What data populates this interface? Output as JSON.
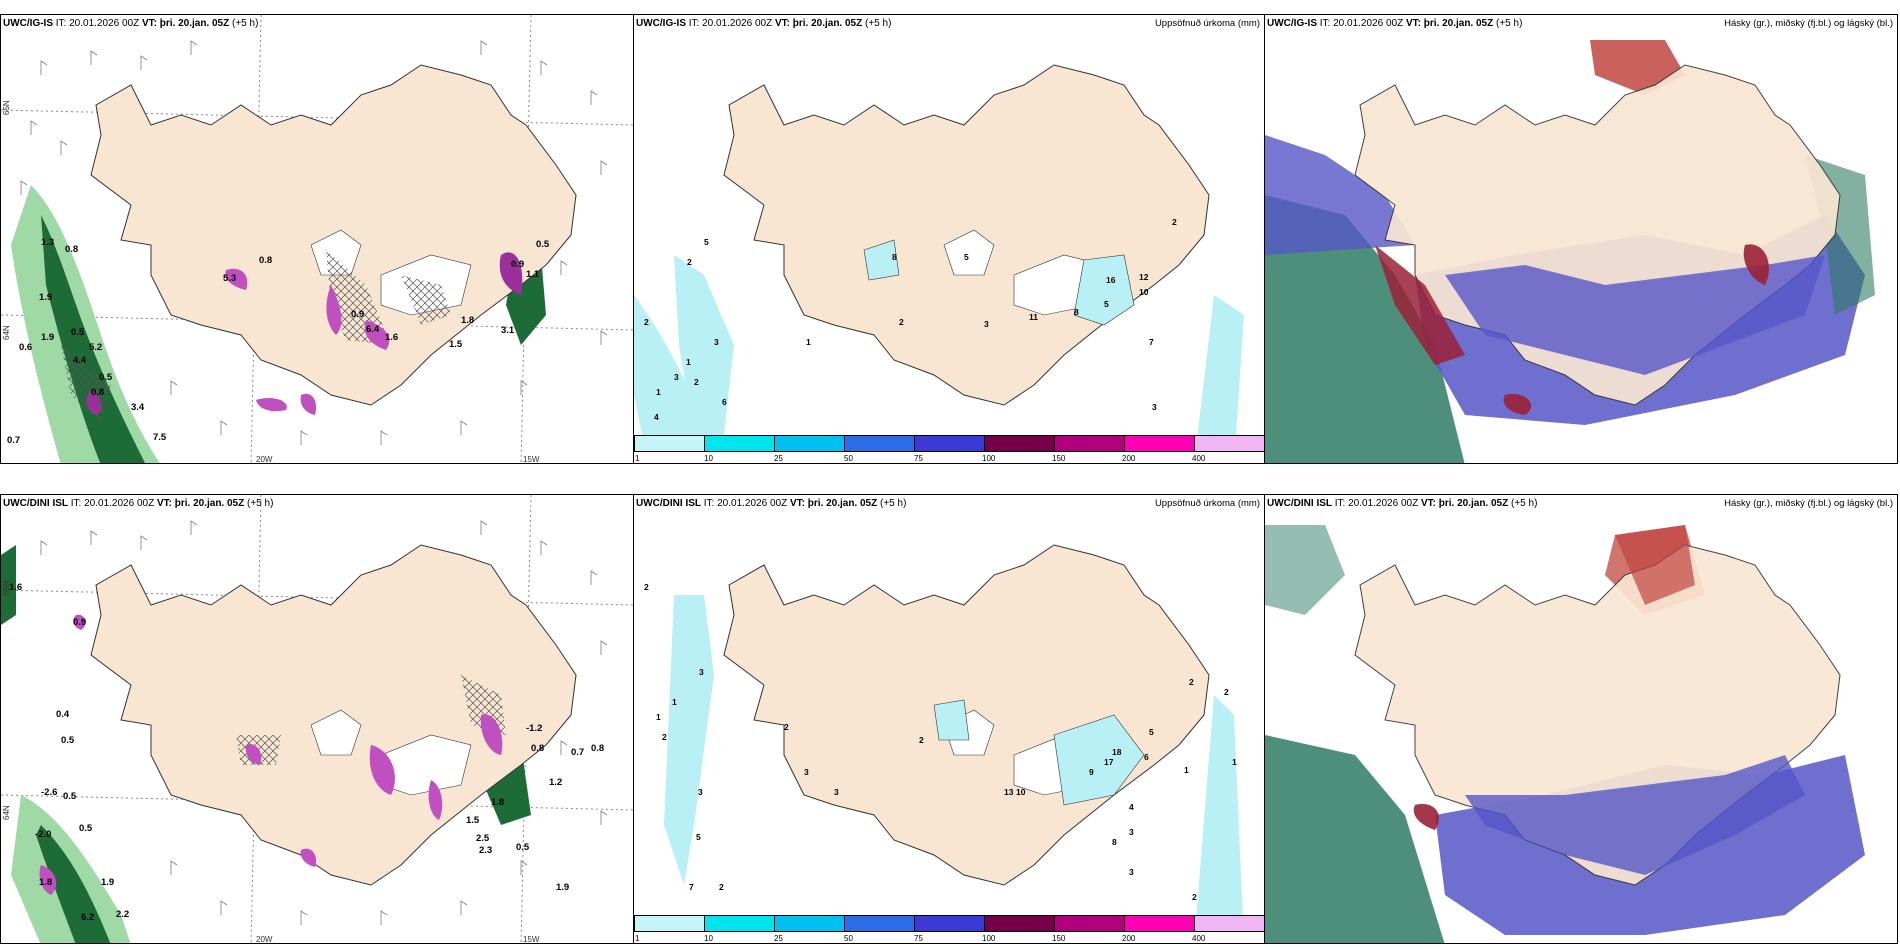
{
  "rows": [
    {
      "model": "UWC/IG-IS",
      "it": "IT: 20.01.2026 00Z",
      "vt_label": "VT:",
      "vt_value": "þri. 20.jan. 05Z",
      "lead": "(+5 h)",
      "wind_values": [
        "1.3",
        "0.8",
        "1.9",
        "1.9",
        "0.6",
        "0.5",
        "5.2",
        "4.4",
        "0.5",
        "0.8",
        "3.4",
        "7.5",
        "0.7",
        "5.3",
        "0.8",
        "0.9",
        "6.4",
        "1.8",
        "1.6",
        "1.5",
        "3.1",
        "1.1",
        "0.5",
        "0.9"
      ],
      "precip_values": [
        "1",
        "3",
        "2",
        "5",
        "2",
        "1",
        "3",
        "2",
        "6",
        "4",
        "8",
        "5",
        "2",
        "1",
        "3",
        "11",
        "8",
        "5",
        "12",
        "10",
        "7",
        "3",
        "2",
        "16"
      ]
    },
    {
      "model": "UWC/DINI ISL",
      "it": "IT: 20.01.2026 00Z",
      "vt_label": "VT:",
      "vt_value": "þri. 20.jan. 05Z",
      "lead": "(+5 h)",
      "wind_values": [
        "1.6",
        "0.9",
        "0.4",
        "0.5",
        "-2.6",
        "0.5",
        "-2.0",
        "0.5",
        "1.8",
        "1.9",
        "6.2",
        "2.2",
        "0.7",
        "0.8",
        "-1.2",
        "0.8",
        "1.2",
        "1.8",
        "1.5",
        "2.5",
        "2.3",
        "0.5",
        "1.9"
      ],
      "precip_values": [
        "2",
        "1",
        "1",
        "3",
        "2",
        "3",
        "5",
        "7",
        "2",
        "2",
        "3",
        "3",
        "2",
        "13",
        "10",
        "9",
        "17",
        "18",
        "5",
        "6",
        "4",
        "3",
        "8",
        "3",
        "2",
        "1",
        "1",
        "2",
        "2"
      ]
    }
  ],
  "precip_title": "Uppsöfnuð úrkoma (mm)",
  "cloud_title": "Hásky (gr.), miðský (fj.bl.) og lágský (bl.)",
  "wind_axis": {
    "lat_label": "65N",
    "lat_label_low": "64N",
    "lon_labels": [
      "20W",
      "15W"
    ]
  },
  "legend": {
    "ticks": [
      "1",
      "10",
      "25",
      "50",
      "75",
      "100",
      "150",
      "200",
      "400"
    ],
    "colors": [
      "#c5f5f8",
      "#00e6ec",
      "#00c0f0",
      "#2e6de8",
      "#3a3ad6",
      "#740048",
      "#b0007d",
      "#ff00b4",
      "#f0b6f3"
    ]
  },
  "colors": {
    "land": "#f8e6d2",
    "precip_light": "#b8f0f6",
    "wind_green_dark": "#0d4d26",
    "wind_green_light": "#9fd9a6",
    "wind_magenta": "#d166d1",
    "cloud_blue": "#5656c8",
    "cloud_green": "#2e7b63",
    "cloud_red": "#9a2136"
  }
}
